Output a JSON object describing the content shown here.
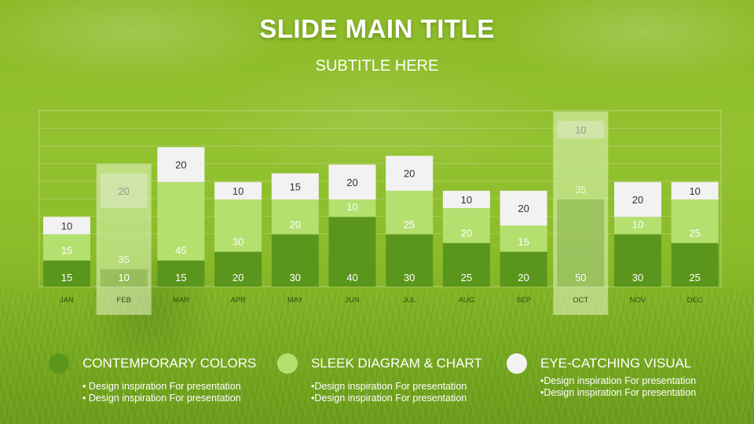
{
  "title": "SLIDE MAIN TITLE",
  "subtitle": "SUBTITLE HERE",
  "colors": {
    "dark": "#5b961c",
    "mid": "#b4e070",
    "light": "#f2f2f2",
    "highlight": "#e6f5c8"
  },
  "chart_data": {
    "type": "bar",
    "stacked": true,
    "categories": [
      "JAN",
      "FEB",
      "MAR",
      "APR",
      "MAY",
      "JUN",
      "JUL",
      "AUG",
      "SEP",
      "OCT",
      "NOV",
      "DEC"
    ],
    "series": [
      {
        "values": [
          15,
          10,
          15,
          20,
          30,
          40,
          30,
          25,
          20,
          50,
          30,
          25
        ]
      },
      {
        "values": [
          15,
          35,
          45,
          30,
          20,
          10,
          25,
          20,
          15,
          35,
          10,
          25
        ]
      },
      {
        "values": [
          10,
          20,
          20,
          10,
          15,
          20,
          20,
          10,
          20,
          10,
          20,
          10
        ]
      }
    ],
    "highlighted": [
      "FEB",
      "OCT"
    ],
    "grid": true
  },
  "legend": [
    {
      "title": "CONTEMPORARY COLORS",
      "lines": [
        "• Design inspiration For presentation",
        "• Design inspiration For presentation"
      ]
    },
    {
      "title": "SLEEK DIAGRAM & CHART",
      "lines": [
        "•Design inspiration For presentation",
        "•Design inspiration For presentation"
      ]
    },
    {
      "title": "EYE-CATCHING VISUAL",
      "lines": [
        "•Design inspiration For presentation",
        "•Design inspiration For presentation"
      ]
    }
  ]
}
